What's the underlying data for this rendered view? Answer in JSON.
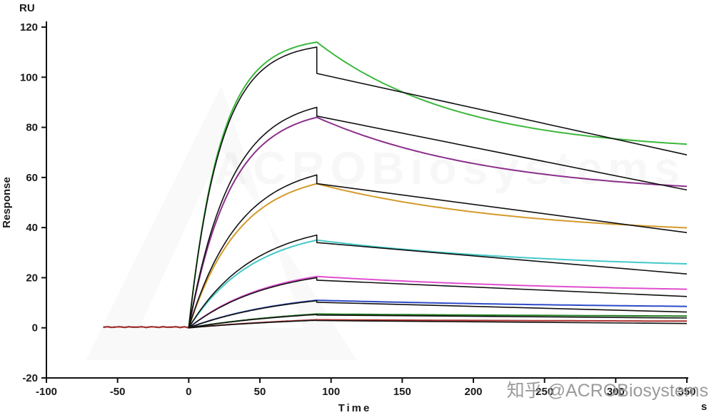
{
  "chart_data": {
    "type": "line",
    "title": "",
    "ylabel": "Response",
    "xlabel": "Time",
    "y_unit_label": "RU",
    "x_unit_label": "s",
    "xlim": [
      -100,
      350
    ],
    "ylim": [
      -20,
      120
    ],
    "xticks": [
      -100,
      -50,
      0,
      50,
      100,
      150,
      200,
      250,
      300,
      350
    ],
    "yticks": [
      -20,
      0,
      20,
      40,
      60,
      80,
      100,
      120
    ],
    "grid": false,
    "legend": "none",
    "baseline_start": -60,
    "association_start": 0,
    "association_end": 90,
    "x_end": 350,
    "fit_color": "#111111",
    "series": [
      {
        "name": "series-green",
        "color": "#3cb83c",
        "k_assoc": 0.045,
        "peak": 114,
        "k_diss": 0.01,
        "plateau": 70.0,
        "end_value": 73,
        "fit": {
          "peak": 112,
          "drop": 101.5,
          "end": 69
        }
      },
      {
        "name": "series-purple",
        "color": "#8b2f8b",
        "k_assoc": 0.034,
        "peak": 84,
        "k_diss": 0.008,
        "plateau": 52.5,
        "end_value": 56,
        "fit": {
          "peak": 88,
          "drop": 84.5,
          "end": 55
        }
      },
      {
        "name": "series-orange",
        "color": "#d49a2a",
        "k_assoc": 0.028,
        "peak": 57.5,
        "k_diss": 0.007,
        "plateau": 36.5,
        "end_value": 40,
        "fit": {
          "peak": 61,
          "drop": 57.5,
          "end": 38
        }
      },
      {
        "name": "series-cyan",
        "color": "#45c8c8",
        "k_assoc": 0.022,
        "peak": 35,
        "k_diss": 0.006,
        "plateau": 23.0,
        "end_value": 25,
        "fit": {
          "peak": 37,
          "drop": 34,
          "end": 21.5
        }
      },
      {
        "name": "series-magenta",
        "color": "#e04fd0",
        "k_assoc": 0.018,
        "peak": 20.5,
        "k_diss": 0.005,
        "plateau": 13.5,
        "end_value": 15,
        "fit": {
          "peak": 20,
          "drop": 19,
          "end": 12.5
        }
      },
      {
        "name": "series-blue",
        "color": "#2c4bc8",
        "k_assoc": 0.014,
        "peak": 11,
        "k_diss": 0.004,
        "plateau": 7.2,
        "end_value": 8.5,
        "fit": {
          "peak": 10.8,
          "drop": 10.2,
          "end": 6.3
        }
      },
      {
        "name": "series-dark-green",
        "color": "#1f7a1f",
        "k_assoc": 0.011,
        "peak": 5.5,
        "k_diss": 0.003,
        "plateau": 4.0,
        "end_value": 4.7,
        "fit": {
          "peak": 5.3,
          "drop": 5.1,
          "end": 3.9
        }
      },
      {
        "name": "series-dark-red",
        "color": "#b03030",
        "k_assoc": 0.009,
        "peak": 3.2,
        "k_diss": 0.002,
        "plateau": 1.9,
        "end_value": 2.5,
        "fit": {
          "peak": 3.0,
          "drop": 2.9,
          "end": 1.7
        }
      }
    ]
  },
  "watermark": {
    "text": "知乎 @ACROBiosystems"
  },
  "background_watermark": {
    "text": "ACROBiosystems"
  }
}
